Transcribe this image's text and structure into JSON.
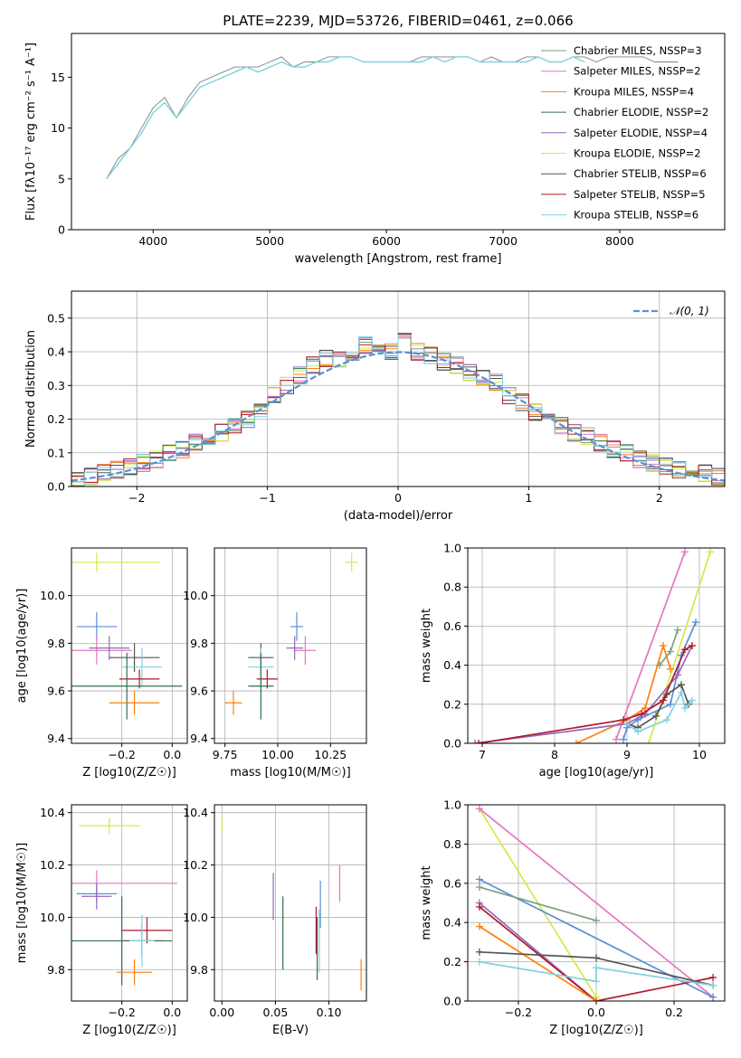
{
  "figure_title": "PLATE=2239, MJD=53726, FIBERID=0461, z=0.066",
  "colors": {
    "chabrier_miles": "#7aa07a",
    "salpeter_miles": "#e377c2",
    "kroupa_miles": "#ff7f0e",
    "chabrier_elodie": "#2f6f4f",
    "salpeter_elodie": "#9467bd",
    "kroupa_elodie": "#d5e84a",
    "chabrier_stelib": "#555555",
    "salpeter_stelib": "#b2182b",
    "kroupa_stelib": "#80d0e0",
    "gaussian": "#5b8fd6"
  },
  "chart_data": [
    {
      "id": "spectrum",
      "type": "line",
      "xlabel": "wavelength [Angstrom, rest frame]",
      "ylabel": "Flux [fλ10⁻¹⁷ erg cm⁻² s⁻¹ A⁻¹]",
      "xlim": [
        3300,
        8900
      ],
      "ylim": [
        0,
        19.3
      ],
      "xticks": [
        4000,
        5000,
        6000,
        7000,
        8000
      ],
      "yticks": [
        0,
        5,
        10,
        15
      ],
      "grid": false,
      "legend_position": "right",
      "legend": [
        "Chabrier MILES, NSSP=3",
        "Salpeter MILES, NSSP=2",
        "Kroupa MILES, NSSP=4",
        "Chabrier ELODIE, NSSP=2",
        "Salpeter ELODIE, NSSP=4",
        "Kroupa ELODIE, NSSP=2",
        "Chabrier STELIB, NSSP=6",
        "Salpeter STELIB, NSSP=5",
        "Kroupa STELIB, NSSP=6"
      ],
      "data_x": [
        3600,
        3700,
        3800,
        3900,
        4000,
        4100,
        4200,
        4300,
        4400,
        4500,
        4600,
        4700,
        4800,
        4900,
        5000,
        5100,
        5200,
        5300,
        5400,
        5500,
        5600,
        5700,
        5800,
        5900,
        6000,
        6100,
        6200,
        6300,
        6400,
        6500,
        6600,
        6700,
        6800,
        6900,
        7000,
        7100,
        7200,
        7300,
        7400,
        7500,
        7600,
        7700,
        7800,
        7900,
        8000,
        8100,
        8200,
        8300,
        8400,
        8500
      ],
      "data_y": [
        5,
        7,
        8,
        10,
        12,
        13,
        11,
        13,
        14.5,
        15,
        15.5,
        16,
        16,
        16,
        16.5,
        17,
        16,
        16.5,
        16.5,
        17,
        17,
        17,
        16.5,
        16.5,
        16.5,
        16.5,
        16.5,
        17,
        17,
        17,
        17,
        17,
        16.5,
        17,
        16.5,
        16.5,
        17,
        17,
        16.5,
        16.5,
        17,
        17,
        16.5,
        17,
        17,
        17,
        17,
        16.5,
        16.5,
        16.5
      ],
      "model_x": [
        3600,
        3700,
        3800,
        3900,
        4000,
        4100,
        4200,
        4300,
        4400,
        4500,
        4600,
        4700,
        4800,
        4900,
        5000,
        5100,
        5200,
        5300,
        5400,
        5500,
        5600,
        5700,
        5800,
        5900,
        6000,
        6100,
        6200,
        6300,
        6400,
        6500,
        6600,
        6700,
        6800,
        6900,
        7000,
        7100,
        7200,
        7300,
        7400,
        7500,
        7600,
        7700
      ],
      "model_y": [
        5,
        6.5,
        8,
        9.5,
        11.5,
        12.5,
        11,
        12.5,
        14,
        14.5,
        15,
        15.5,
        16,
        15.5,
        16,
        16.5,
        16,
        16,
        16.5,
        16.5,
        17,
        17,
        16.5,
        16.5,
        16.5,
        16.5,
        16.5,
        16.5,
        17,
        16.5,
        17,
        17,
        16.5,
        16.5,
        16.5,
        16.5,
        16.5,
        17,
        16.5,
        16.5,
        17,
        16.5
      ]
    },
    {
      "id": "residual_hist",
      "type": "bar",
      "xlabel": "(data-model)/error",
      "ylabel": "Normed distribution",
      "xlim": [
        -2.5,
        2.5
      ],
      "ylim": [
        0,
        0.58
      ],
      "xticks": [
        -2,
        -1,
        0,
        1,
        2
      ],
      "yticks": [
        0.0,
        0.1,
        0.2,
        0.3,
        0.4,
        0.5
      ],
      "grid": true,
      "legend": [
        "𝒩(0, 1)"
      ],
      "legend_position": "top-right",
      "bin_width": 0.1,
      "hist_centers": [
        -2.45,
        -2.35,
        -2.25,
        -2.15,
        -2.05,
        -1.95,
        -1.85,
        -1.75,
        -1.65,
        -1.55,
        -1.45,
        -1.35,
        -1.25,
        -1.15,
        -1.05,
        -0.95,
        -0.85,
        -0.75,
        -0.65,
        -0.55,
        -0.45,
        -0.35,
        -0.25,
        -0.15,
        -0.05,
        0.05,
        0.15,
        0.25,
        0.35,
        0.45,
        0.55,
        0.65,
        0.75,
        0.85,
        0.95,
        1.05,
        1.15,
        1.25,
        1.35,
        1.45,
        1.55,
        1.65,
        1.75,
        1.85,
        1.95,
        2.05,
        2.15,
        2.25,
        2.35,
        2.45
      ],
      "hist_values": [
        0.02,
        0.03,
        0.04,
        0.05,
        0.06,
        0.07,
        0.08,
        0.1,
        0.11,
        0.13,
        0.15,
        0.16,
        0.18,
        0.2,
        0.22,
        0.27,
        0.3,
        0.33,
        0.36,
        0.38,
        0.38,
        0.4,
        0.42,
        0.41,
        0.4,
        0.43,
        0.4,
        0.39,
        0.37,
        0.36,
        0.34,
        0.32,
        0.31,
        0.27,
        0.25,
        0.22,
        0.2,
        0.18,
        0.16,
        0.15,
        0.13,
        0.11,
        0.1,
        0.08,
        0.07,
        0.06,
        0.05,
        0.05,
        0.04,
        0.03
      ]
    },
    {
      "id": "age_vs_Z",
      "type": "scatter",
      "xlabel": "Z [log10(Z/Z☉)]",
      "ylabel": "age  [log10(age/yr)]",
      "xlim": [
        -0.4,
        0.06
      ],
      "ylim": [
        9.38,
        10.2
      ],
      "xticks": [
        -0.2,
        0.0
      ],
      "yticks": [
        9.4,
        9.6,
        9.8,
        10.0
      ],
      "grid": true,
      "points": [
        {
          "key": "kroupa_elodie",
          "x": -0.3,
          "y": 10.14,
          "xerr": 0.25,
          "yerr": 0.04
        },
        {
          "key": "gaussian",
          "x": -0.3,
          "y": 9.87,
          "xerr": 0.08,
          "yerr": 0.06
        },
        {
          "key": "salpeter_miles",
          "x": -0.3,
          "y": 9.77,
          "xerr": 0.14,
          "yerr": 0.06
        },
        {
          "key": "salpeter_elodie",
          "x": -0.25,
          "y": 9.78,
          "xerr": 0.08,
          "yerr": 0.05
        },
        {
          "key": "chabrier_stelib",
          "x": -0.15,
          "y": 9.74,
          "xerr": 0.1,
          "yerr": 0.06
        },
        {
          "key": "kroupa_stelib",
          "x": -0.12,
          "y": 9.7,
          "xerr": 0.08,
          "yerr": 0.08
        },
        {
          "key": "salpeter_stelib",
          "x": -0.13,
          "y": 9.65,
          "xerr": 0.08,
          "yerr": 0.04
        },
        {
          "key": "chabrier_elodie",
          "x": -0.18,
          "y": 9.62,
          "xerr": 0.22,
          "yerr": 0.14
        },
        {
          "key": "kroupa_miles",
          "x": -0.15,
          "y": 9.55,
          "xerr": 0.1,
          "yerr": 0.05
        }
      ]
    },
    {
      "id": "age_vs_mass",
      "type": "scatter",
      "xlabel": "mass [log10(M/M☉)]",
      "ylabel": "",
      "xlim": [
        9.7,
        10.42
      ],
      "ylim": [
        9.38,
        10.2
      ],
      "xticks": [
        9.75,
        10.0,
        10.25
      ],
      "yticks": [
        9.4,
        9.6,
        9.8,
        10.0
      ],
      "grid": true,
      "points": [
        {
          "key": "kroupa_elodie",
          "x": 10.35,
          "y": 10.14,
          "xerr": 0.03,
          "yerr": 0.04
        },
        {
          "key": "gaussian",
          "x": 10.09,
          "y": 9.87,
          "xerr": 0.03,
          "yerr": 0.06
        },
        {
          "key": "salpeter_miles",
          "x": 10.13,
          "y": 9.77,
          "xerr": 0.05,
          "yerr": 0.06
        },
        {
          "key": "salpeter_elodie",
          "x": 10.08,
          "y": 9.78,
          "xerr": 0.04,
          "yerr": 0.05
        },
        {
          "key": "chabrier_stelib",
          "x": 9.92,
          "y": 9.74,
          "xerr": 0.06,
          "yerr": 0.06
        },
        {
          "key": "kroupa_stelib",
          "x": 9.92,
          "y": 9.7,
          "xerr": 0.06,
          "yerr": 0.08
        },
        {
          "key": "salpeter_stelib",
          "x": 9.95,
          "y": 9.65,
          "xerr": 0.05,
          "yerr": 0.04
        },
        {
          "key": "chabrier_elodie",
          "x": 9.92,
          "y": 9.62,
          "xerr": 0.06,
          "yerr": 0.14
        },
        {
          "key": "kroupa_miles",
          "x": 9.79,
          "y": 9.55,
          "xerr": 0.04,
          "yerr": 0.05
        }
      ]
    },
    {
      "id": "weight_vs_age",
      "type": "line",
      "xlabel": "age  [log10(age/yr)]",
      "ylabel": "mass weight",
      "xlim": [
        6.8,
        10.35
      ],
      "ylim": [
        0,
        1
      ],
      "xticks": [
        7,
        8,
        9,
        10
      ],
      "yticks": [
        0.0,
        0.2,
        0.4,
        0.6,
        0.8,
        1.0
      ],
      "grid": true,
      "series": [
        {
          "key": "salpeter_miles",
          "x": [
            8.85,
            9.8
          ],
          "y": [
            0.02,
            0.98
          ]
        },
        {
          "key": "kroupa_elodie",
          "x": [
            9.3,
            10.15
          ],
          "y": [
            0.0,
            0.98
          ]
        },
        {
          "key": "kroupa_miles",
          "x": [
            8.3,
            9.0,
            9.25,
            9.5,
            9.6
          ],
          "y": [
            0.0,
            0.12,
            0.18,
            0.5,
            0.38
          ]
        },
        {
          "key": "chabrier_miles",
          "x": [
            9.45,
            9.6,
            9.7
          ],
          "y": [
            0.4,
            0.47,
            0.58
          ]
        },
        {
          "key": "gaussian",
          "x": [
            8.95,
            9.0,
            9.15,
            9.6,
            9.75,
            9.95
          ],
          "y": [
            0.02,
            0.08,
            0.12,
            0.2,
            0.45,
            0.62
          ]
        },
        {
          "key": "salpeter_elodie",
          "x": [
            6.9,
            9.0,
            9.25,
            9.7,
            9.9
          ],
          "y": [
            0.0,
            0.1,
            0.15,
            0.35,
            0.5
          ]
        },
        {
          "key": "chabrier_stelib",
          "x": [
            9.0,
            9.15,
            9.4,
            9.55,
            9.75,
            9.85
          ],
          "y": [
            0.1,
            0.08,
            0.14,
            0.25,
            0.3,
            0.2
          ]
        },
        {
          "key": "salpeter_stelib",
          "x": [
            6.95,
            8.95,
            9.2,
            9.5,
            9.8,
            9.9
          ],
          "y": [
            0.0,
            0.12,
            0.15,
            0.22,
            0.48,
            0.5
          ]
        },
        {
          "key": "kroupa_stelib",
          "x": [
            9.0,
            9.15,
            9.55,
            9.75,
            9.8,
            9.9
          ],
          "y": [
            0.1,
            0.06,
            0.12,
            0.26,
            0.18,
            0.22
          ]
        }
      ]
    },
    {
      "id": "mass_vs_Z",
      "type": "scatter",
      "xlabel": "Z [log10(Z/Z☉)]",
      "ylabel": "mass [log10(M/M☉)]",
      "xlim": [
        -0.4,
        0.06
      ],
      "ylim": [
        9.68,
        10.43
      ],
      "xticks": [
        -0.2,
        0.0
      ],
      "yticks": [
        9.8,
        10.0,
        10.2,
        10.4
      ],
      "grid": true,
      "points": [
        {
          "key": "kroupa_elodie",
          "x": -0.25,
          "y": 10.35,
          "xerr": 0.12,
          "yerr": 0.03
        },
        {
          "key": "salpeter_miles",
          "x": -0.3,
          "y": 10.13,
          "xerr": 0.32,
          "yerr": 0.05
        },
        {
          "key": "gaussian",
          "x": -0.3,
          "y": 10.09,
          "xerr": 0.08,
          "yerr": 0.03
        },
        {
          "key": "salpeter_elodie",
          "x": -0.3,
          "y": 10.08,
          "xerr": 0.06,
          "yerr": 0.05
        },
        {
          "key": "salpeter_stelib",
          "x": -0.1,
          "y": 9.95,
          "xerr": 0.1,
          "yerr": 0.05
        },
        {
          "key": "chabrier_elodie",
          "x": -0.2,
          "y": 9.91,
          "xerr": 0.2,
          "yerr": 0.17
        },
        {
          "key": "chabrier_stelib",
          "x": -0.12,
          "y": 9.91,
          "xerr": 0.08,
          "yerr": 0.06
        },
        {
          "key": "kroupa_stelib",
          "x": -0.12,
          "y": 9.91,
          "xerr": 0.05,
          "yerr": 0.1
        },
        {
          "key": "kroupa_miles",
          "x": -0.15,
          "y": 9.79,
          "xerr": 0.07,
          "yerr": 0.05
        }
      ]
    },
    {
      "id": "mass_vs_ebv",
      "type": "scatter",
      "xlabel": "E(B-V)",
      "ylabel": "",
      "xlim": [
        -0.007,
        0.135
      ],
      "ylim": [
        9.68,
        10.43
      ],
      "xticks": [
        0.0,
        0.05,
        0.1
      ],
      "yticks": [
        9.8,
        10.0,
        10.2,
        10.4
      ],
      "grid": true,
      "points": [
        {
          "key": "kroupa_elodie",
          "x": 0.0,
          "y": 10.35,
          "xerr": 0,
          "yerr": 0.03
        },
        {
          "key": "salpeter_miles",
          "x": 0.11,
          "y": 10.13,
          "xerr": 0,
          "yerr": 0.07
        },
        {
          "key": "salpeter_elodie",
          "x": 0.048,
          "y": 10.08,
          "xerr": 0,
          "yerr": 0.09
        },
        {
          "key": "gaussian",
          "x": 0.092,
          "y": 10.05,
          "xerr": 0,
          "yerr": 0.09
        },
        {
          "key": "chabrier_elodie",
          "x": 0.057,
          "y": 9.94,
          "xerr": 0,
          "yerr": 0.14
        },
        {
          "key": "salpeter_stelib",
          "x": 0.088,
          "y": 9.95,
          "xerr": 0,
          "yerr": 0.09
        },
        {
          "key": "chabrier_stelib",
          "x": 0.089,
          "y": 9.88,
          "xerr": 0,
          "yerr": 0.12
        },
        {
          "key": "kroupa_stelib",
          "x": 0.091,
          "y": 9.91,
          "xerr": 0,
          "yerr": 0.12
        },
        {
          "key": "kroupa_miles",
          "x": 0.13,
          "y": 9.78,
          "xerr": 0,
          "yerr": 0.06
        }
      ]
    },
    {
      "id": "weight_vs_Z",
      "type": "line",
      "xlabel": "Z [log10(Z/Z☉)]",
      "ylabel": "mass weight",
      "xlim": [
        -0.33,
        0.33
      ],
      "ylim": [
        0,
        1
      ],
      "xticks": [
        -0.2,
        0.0,
        0.2
      ],
      "yticks": [
        0.0,
        0.2,
        0.4,
        0.6,
        0.8,
        1.0
      ],
      "grid": true,
      "series": [
        {
          "key": "kroupa_elodie",
          "x": [
            -0.3,
            0.0
          ],
          "y": [
            0.98,
            0.02
          ]
        },
        {
          "key": "salpeter_miles",
          "x": [
            -0.3,
            0.3
          ],
          "y": [
            0.98,
            0.02
          ]
        },
        {
          "key": "gaussian",
          "x": [
            -0.3,
            0.3
          ],
          "y": [
            0.62,
            0.02
          ]
        },
        {
          "key": "chabrier_miles",
          "x": [
            -0.3,
            0.0
          ],
          "y": [
            0.58,
            0.41
          ]
        },
        {
          "key": "salpeter_elodie",
          "x": [
            -0.3,
            0.0
          ],
          "y": [
            0.5,
            0.0
          ]
        },
        {
          "key": "salpeter_stelib",
          "x": [
            -0.3,
            0.0,
            0.3
          ],
          "y": [
            0.48,
            0.0,
            0.12
          ]
        },
        {
          "key": "kroupa_miles",
          "x": [
            -0.3,
            0.0
          ],
          "y": [
            0.38,
            0.0
          ]
        },
        {
          "key": "chabrier_stelib",
          "x": [
            -0.3,
            0.0,
            0.3
          ],
          "y": [
            0.25,
            0.22,
            0.08
          ]
        },
        {
          "key": "kroupa_stelib",
          "x": [
            -0.3,
            0.0,
            0.0,
            0.3
          ],
          "y": [
            0.2,
            0.1,
            0.17,
            0.08
          ]
        }
      ]
    }
  ]
}
